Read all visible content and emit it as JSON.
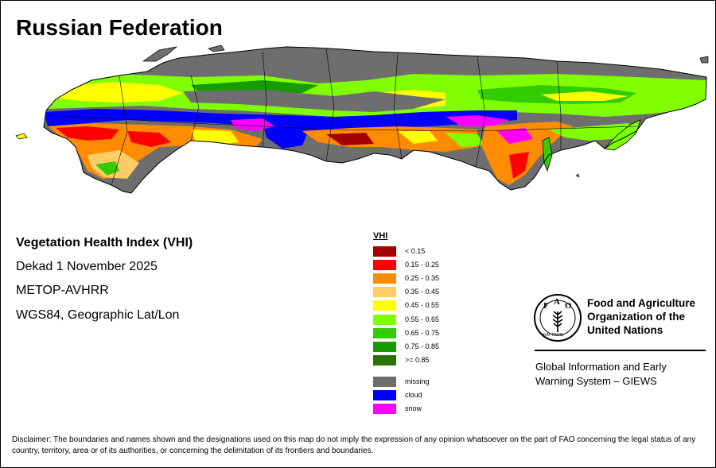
{
  "title": "Russian Federation",
  "info": {
    "index_name": "Vegetation Health Index (VHI)",
    "period": "Dekad 1 November 2025",
    "sensor": "METOP-AVHRR",
    "projection": "WGS84, Geographic Lat/Lon"
  },
  "legend": {
    "title": "VHI",
    "classes": [
      {
        "label": "< 0.15",
        "color": "#a50000"
      },
      {
        "label": "0.15 - 0.25",
        "color": "#ff0000"
      },
      {
        "label": "0.25 - 0.35",
        "color": "#ff8c00"
      },
      {
        "label": "0.35 - 0.45",
        "color": "#ffcc66"
      },
      {
        "label": "0.45 - 0.55",
        "color": "#ffff00"
      },
      {
        "label": "0.55 - 0.65",
        "color": "#80ff00"
      },
      {
        "label": "0.65 - 0.75",
        "color": "#33cc00"
      },
      {
        "label": "0.75 - 0.85",
        "color": "#169b00"
      },
      {
        "label": ">= 0.85",
        "color": "#267300"
      }
    ],
    "special": [
      {
        "label": "missing",
        "color": "#6e6e6e"
      },
      {
        "label": "cloud",
        "color": "#0000ff"
      },
      {
        "label": "snow",
        "color": "#ff00ff"
      }
    ]
  },
  "fao": {
    "org_lines": [
      "Food and Agriculture",
      "Organization of the",
      "United Nations"
    ],
    "emblem_text": "FAO",
    "motto": "FIAT PANIS",
    "giews_lines": [
      "Global Information and Early",
      "Warning System – GIEWS"
    ]
  },
  "disclaimer": "Disclaimer: The boundaries and names shown and the designations used on this map do not imply the expression of any opinion whatsoever on the part of FAO concerning the legal status of any country, territory, area or of its authorities, or concerning the delimitation of its frontiers and boundaries."
}
